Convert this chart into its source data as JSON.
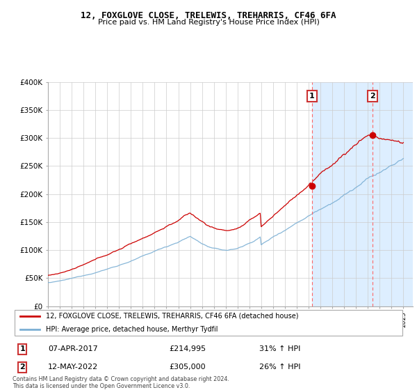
{
  "title": "12, FOXGLOVE CLOSE, TRELEWIS, TREHARRIS, CF46 6FA",
  "subtitle": "Price paid vs. HM Land Registry's House Price Index (HPI)",
  "ylabel_ticks": [
    "£0",
    "£50K",
    "£100K",
    "£150K",
    "£200K",
    "£250K",
    "£300K",
    "£350K",
    "£400K"
  ],
  "ytick_values": [
    0,
    50000,
    100000,
    150000,
    200000,
    250000,
    300000,
    350000,
    400000
  ],
  "ylim": [
    0,
    400000
  ],
  "sale1_date": "07-APR-2017",
  "sale1_price": 214995,
  "sale1_year": 2017.27,
  "sale1_hpi": "31% ↑ HPI",
  "sale2_date": "12-MAY-2022",
  "sale2_price": 305000,
  "sale2_year": 2022.37,
  "sale2_hpi": "26% ↑ HPI",
  "legend_property": "12, FOXGLOVE CLOSE, TRELEWIS, TREHARRIS, CF46 6FA (detached house)",
  "legend_hpi": "HPI: Average price, detached house, Merthyr Tydfil",
  "footnote": "Contains HM Land Registry data © Crown copyright and database right 2024.\nThis data is licensed under the Open Government Licence v3.0.",
  "hpi_color": "#7BAFD4",
  "property_color": "#CC0000",
  "vline_color": "#FF6666",
  "background_fig": "#FFFFFF",
  "grid_color": "#CCCCCC",
  "shade_color": "#DDEEFF"
}
